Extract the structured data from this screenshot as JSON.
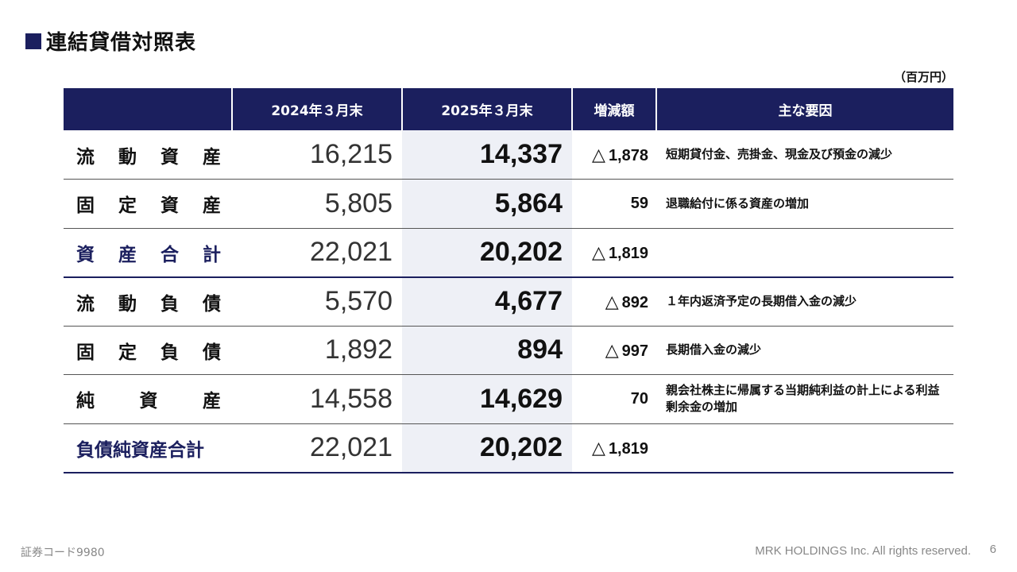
{
  "slide": {
    "title": "連結貸借対照表",
    "unit": "（百万円）",
    "accent_color": "#1b1f5e",
    "highlight_color": "#eef0f6"
  },
  "table": {
    "headers": [
      "",
      "2024年３月末",
      "2025年３月末",
      "増減額",
      "主な要因"
    ],
    "rows": [
      {
        "label_chars": [
          "流",
          "動",
          "資",
          "産"
        ],
        "prev": "16,215",
        "curr": "14,337",
        "diff_neg": true,
        "diff": "1,878",
        "reason": "短期貸付金、売掛金、現金及び預金の減少",
        "total": false
      },
      {
        "label_chars": [
          "固",
          "定",
          "資",
          "産"
        ],
        "prev": "5,805",
        "curr": "5,864",
        "diff_neg": false,
        "diff": "59",
        "reason": "退職給付に係る資産の増加",
        "total": false
      },
      {
        "label_chars": [
          "資",
          "産",
          "合",
          "計"
        ],
        "prev": "22,021",
        "curr": "20,202",
        "diff_neg": true,
        "diff": "1,819",
        "reason": "",
        "total": true
      },
      {
        "label_chars": [
          "流",
          "動",
          "負",
          "債"
        ],
        "prev": "5,570",
        "curr": "4,677",
        "diff_neg": true,
        "diff": "892",
        "reason": "１年内返済予定の長期借入金の減少",
        "total": false
      },
      {
        "label_chars": [
          "固",
          "定",
          "負",
          "債"
        ],
        "prev": "1,892",
        "curr": "894",
        "diff_neg": true,
        "diff": "997",
        "reason": "長期借入金の減少",
        "total": false
      },
      {
        "label_chars": [
          "純",
          "資",
          "産"
        ],
        "prev": "14,558",
        "curr": "14,629",
        "diff_neg": false,
        "diff": "70",
        "reason": "親会社株主に帰属する当期純利益の計上による利益剰余金の増加",
        "total": false
      },
      {
        "label_chars": [
          "負債純資産合計"
        ],
        "prev": "22,021",
        "curr": "20,202",
        "diff_neg": true,
        "diff": "1,819",
        "reason": "",
        "total": true
      }
    ],
    "neg_symbol": "△"
  },
  "footer": {
    "code": "証券コード9980",
    "copyright": "MRK HOLDINGS Inc. All rights reserved.",
    "page": "6"
  }
}
